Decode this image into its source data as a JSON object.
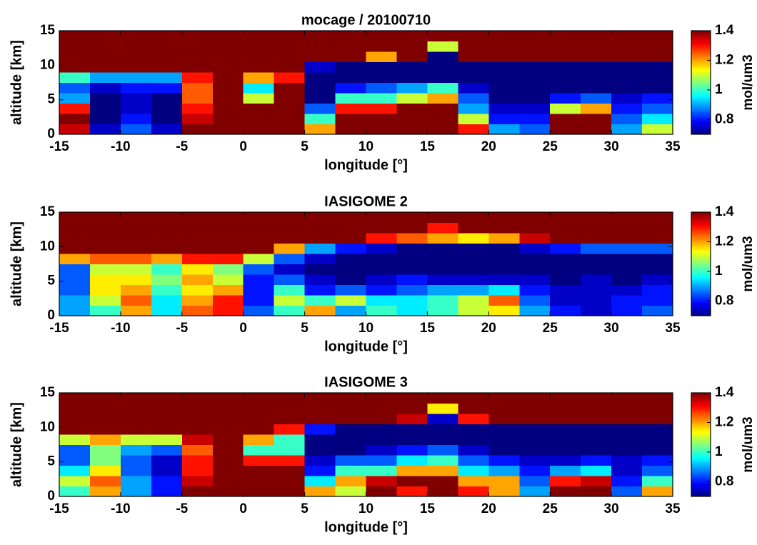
{
  "chart_data": [
    {
      "type": "heatmap",
      "title": "mocage / 20100710",
      "xlabel": "longitude [°]",
      "ylabel": "altitude [km]",
      "x": [
        -13.75,
        -11.25,
        -8.75,
        -6.25,
        -3.75,
        -1.25,
        1.25,
        3.75,
        6.25,
        8.75,
        11.25,
        13.75,
        16.25,
        18.75,
        21.25,
        23.75,
        26.25,
        28.75,
        31.25,
        33.75
      ],
      "y": [
        0.75,
        2.25,
        3.75,
        5.25,
        6.75,
        8.25,
        9.75,
        11.25,
        12.75,
        14.25
      ],
      "z": [
        [
          1.35,
          0.75,
          0.85,
          0.75,
          1.4,
          1.5,
          1.5,
          1.5,
          1.2,
          1.5,
          1.4,
          1.5,
          1.5,
          1.3,
          0.9,
          0.85,
          1.5,
          1.45,
          0.9,
          1.1
        ],
        [
          1.4,
          0.7,
          0.8,
          0.7,
          1.35,
          1.5,
          1.5,
          1.5,
          1.0,
          1.5,
          1.45,
          1.5,
          1.5,
          1.1,
          0.8,
          0.8,
          1.45,
          1.4,
          0.85,
          0.95
        ],
        [
          1.3,
          0.7,
          0.75,
          0.7,
          1.3,
          1.5,
          1.5,
          1.5,
          0.85,
          1.3,
          1.3,
          1.4,
          1.4,
          0.9,
          0.75,
          0.75,
          1.1,
          1.2,
          0.8,
          0.85
        ],
        [
          0.9,
          0.7,
          0.75,
          0.7,
          1.25,
          1.5,
          1.1,
          1.5,
          0.7,
          1.0,
          1.0,
          1.1,
          1.2,
          0.85,
          0.7,
          0.7,
          0.8,
          0.85,
          0.75,
          0.8
        ],
        [
          0.85,
          0.75,
          0.8,
          0.8,
          1.25,
          1.5,
          0.95,
          1.5,
          0.7,
          0.8,
          0.85,
          0.9,
          1.0,
          0.75,
          0.7,
          0.7,
          0.7,
          0.7,
          0.7,
          0.7
        ],
        [
          1.0,
          0.9,
          0.9,
          0.9,
          1.3,
          1.45,
          1.2,
          1.3,
          0.7,
          0.7,
          0.7,
          0.7,
          0.7,
          0.7,
          0.7,
          0.7,
          0.7,
          0.7,
          0.7,
          0.7
        ],
        [
          1.5,
          1.5,
          1.5,
          1.5,
          1.5,
          1.5,
          1.5,
          1.5,
          0.75,
          0.7,
          0.7,
          0.7,
          0.7,
          0.7,
          0.7,
          0.7,
          0.7,
          0.7,
          0.7,
          0.7
        ],
        [
          1.5,
          1.5,
          1.5,
          1.5,
          1.5,
          1.5,
          1.5,
          1.5,
          1.5,
          1.5,
          1.2,
          1.4,
          0.7,
          1.5,
          1.5,
          1.5,
          1.5,
          1.5,
          1.5,
          1.5
        ],
        [
          1.5,
          1.5,
          1.5,
          1.5,
          1.5,
          1.5,
          1.5,
          1.5,
          1.5,
          1.5,
          1.5,
          1.5,
          1.1,
          1.5,
          1.5,
          1.5,
          1.5,
          1.5,
          1.5,
          1.5
        ],
        [
          1.5,
          1.5,
          1.5,
          1.5,
          1.5,
          1.5,
          1.5,
          1.5,
          1.5,
          1.5,
          1.5,
          1.5,
          1.5,
          1.5,
          1.5,
          1.5,
          1.5,
          1.5,
          1.5,
          1.5
        ]
      ],
      "xlim": [
        -15,
        35
      ],
      "ylim": [
        0,
        15
      ],
      "xticks": [
        -15,
        -10,
        -5,
        0,
        5,
        10,
        15,
        20,
        25,
        30,
        35
      ],
      "yticks": [
        0,
        5,
        10,
        15
      ],
      "colorbar": {
        "label": "mol/um3",
        "clim": [
          0.7,
          1.4
        ],
        "ticks": [
          0.8,
          1,
          1.2,
          1.4
        ],
        "colormap": "jet"
      }
    },
    {
      "type": "heatmap",
      "title": "IASIGOME 2",
      "xlabel": "longitude [°]",
      "ylabel": "altitude [km]",
      "x": [
        -13.75,
        -11.25,
        -8.75,
        -6.25,
        -3.75,
        -1.25,
        1.25,
        3.75,
        6.25,
        8.75,
        11.25,
        13.75,
        16.25,
        18.75,
        21.25,
        23.75,
        26.25,
        28.75,
        31.25,
        33.75
      ],
      "y": [
        0.75,
        2.25,
        3.75,
        5.25,
        6.75,
        8.25,
        9.75,
        11.25,
        12.75,
        14.25
      ],
      "z": [
        [
          0.9,
          1.0,
          1.2,
          0.95,
          1.25,
          1.3,
          0.85,
          1.0,
          1.2,
          0.9,
          1.0,
          0.95,
          1.0,
          1.1,
          1.15,
          0.9,
          0.8,
          0.75,
          0.8,
          0.85
        ],
        [
          0.9,
          1.1,
          1.25,
          0.95,
          1.2,
          1.3,
          0.8,
          1.1,
          1.0,
          1.1,
          0.95,
          0.95,
          1.0,
          1.1,
          1.25,
          0.85,
          0.75,
          0.75,
          0.8,
          0.8
        ],
        [
          0.85,
          1.15,
          1.2,
          1.0,
          1.15,
          1.2,
          0.8,
          1.0,
          0.8,
          0.85,
          0.8,
          0.85,
          0.9,
          0.9,
          0.95,
          0.8,
          0.75,
          0.75,
          0.75,
          0.8
        ],
        [
          0.85,
          1.15,
          1.15,
          1.05,
          1.2,
          1.1,
          0.8,
          0.85,
          0.75,
          0.7,
          0.75,
          0.8,
          0.75,
          0.75,
          0.75,
          0.75,
          0.7,
          0.75,
          0.7,
          0.75
        ],
        [
          0.85,
          1.1,
          1.1,
          1.0,
          1.15,
          1.05,
          0.85,
          0.75,
          0.7,
          0.7,
          0.7,
          0.7,
          0.7,
          0.7,
          0.7,
          0.7,
          0.7,
          0.7,
          0.7,
          0.7
        ],
        [
          1.2,
          1.25,
          1.25,
          1.2,
          1.3,
          1.3,
          1.1,
          0.85,
          0.75,
          0.7,
          0.7,
          0.7,
          0.7,
          0.7,
          0.7,
          0.7,
          0.7,
          0.7,
          0.7,
          0.7
        ],
        [
          1.5,
          1.5,
          1.5,
          1.5,
          1.5,
          1.5,
          1.4,
          1.2,
          0.9,
          0.8,
          0.75,
          0.7,
          0.7,
          0.7,
          0.7,
          0.75,
          0.8,
          0.85,
          0.85,
          0.85
        ],
        [
          1.5,
          1.5,
          1.5,
          1.5,
          1.5,
          1.5,
          1.5,
          1.5,
          1.5,
          1.4,
          1.3,
          1.25,
          1.2,
          1.15,
          1.2,
          1.35,
          1.5,
          1.5,
          1.5,
          1.5
        ],
        [
          1.5,
          1.5,
          1.5,
          1.5,
          1.5,
          1.5,
          1.5,
          1.5,
          1.5,
          1.5,
          1.5,
          1.5,
          1.3,
          1.5,
          1.5,
          1.5,
          1.5,
          1.5,
          1.5,
          1.5
        ],
        [
          1.5,
          1.5,
          1.5,
          1.5,
          1.5,
          1.5,
          1.5,
          1.5,
          1.5,
          1.5,
          1.5,
          1.5,
          1.5,
          1.5,
          1.5,
          1.5,
          1.5,
          1.5,
          1.5,
          1.5
        ]
      ],
      "xlim": [
        -15,
        35
      ],
      "ylim": [
        0,
        15
      ],
      "xticks": [
        -15,
        -10,
        -5,
        0,
        5,
        10,
        15,
        20,
        25,
        30,
        35
      ],
      "yticks": [
        0,
        5,
        10,
        15
      ],
      "colorbar": {
        "label": "mol/um3",
        "clim": [
          0.7,
          1.4
        ],
        "ticks": [
          0.8,
          1,
          1.2,
          1.4
        ],
        "colormap": "jet"
      }
    },
    {
      "type": "heatmap",
      "title": "IASIGOME 3",
      "xlabel": "longitude [°]",
      "ylabel": "altitude [km]",
      "x": [
        -13.75,
        -11.25,
        -8.75,
        -6.25,
        -3.75,
        -1.25,
        1.25,
        3.75,
        6.25,
        8.75,
        11.25,
        13.75,
        16.25,
        18.75,
        21.25,
        23.75,
        26.25,
        28.75,
        31.25,
        33.75
      ],
      "y": [
        0.75,
        2.25,
        3.75,
        5.25,
        6.75,
        8.25,
        9.75,
        11.25,
        12.75,
        14.25
      ],
      "z": [
        [
          1.0,
          1.2,
          0.9,
          0.8,
          1.4,
          1.5,
          1.5,
          1.5,
          1.2,
          1.1,
          1.45,
          1.3,
          1.4,
          1.3,
          1.2,
          0.9,
          1.45,
          1.4,
          0.85,
          1.2
        ],
        [
          1.1,
          1.25,
          0.9,
          0.8,
          1.35,
          1.5,
          1.5,
          1.5,
          0.95,
          1.2,
          1.35,
          1.4,
          1.4,
          1.2,
          1.2,
          0.85,
          1.3,
          1.35,
          0.8,
          1.0
        ],
        [
          0.95,
          1.15,
          0.85,
          0.75,
          1.3,
          1.5,
          1.5,
          1.45,
          0.8,
          1.0,
          1.0,
          1.2,
          1.2,
          0.95,
          0.9,
          0.8,
          0.9,
          0.95,
          0.75,
          0.85
        ],
        [
          0.85,
          1.05,
          0.85,
          0.75,
          1.3,
          1.5,
          1.3,
          1.3,
          0.75,
          0.85,
          0.85,
          0.95,
          1.0,
          0.85,
          0.8,
          0.75,
          0.75,
          0.8,
          0.75,
          0.8
        ],
        [
          0.85,
          1.05,
          0.9,
          0.85,
          1.25,
          1.5,
          1.0,
          1.0,
          0.7,
          0.7,
          0.75,
          0.8,
          0.85,
          0.75,
          0.7,
          0.7,
          0.7,
          0.7,
          0.7,
          0.7
        ],
        [
          1.1,
          1.2,
          1.1,
          1.1,
          1.35,
          1.4,
          1.2,
          1.0,
          0.7,
          0.7,
          0.7,
          0.7,
          0.7,
          0.7,
          0.7,
          0.7,
          0.7,
          0.7,
          0.7,
          0.7
        ],
        [
          1.5,
          1.5,
          1.5,
          1.5,
          1.5,
          1.5,
          1.5,
          1.3,
          0.8,
          0.7,
          0.7,
          0.7,
          0.7,
          0.7,
          0.7,
          0.7,
          0.7,
          0.7,
          0.7,
          0.7
        ],
        [
          1.5,
          1.5,
          1.5,
          1.5,
          1.5,
          1.5,
          1.5,
          1.5,
          1.5,
          1.5,
          1.4,
          1.35,
          0.75,
          1.3,
          1.45,
          1.5,
          1.5,
          1.5,
          1.5,
          1.5
        ],
        [
          1.5,
          1.5,
          1.5,
          1.5,
          1.5,
          1.5,
          1.5,
          1.5,
          1.5,
          1.5,
          1.5,
          1.5,
          1.15,
          1.5,
          1.5,
          1.5,
          1.5,
          1.5,
          1.5,
          1.5
        ],
        [
          1.5,
          1.5,
          1.5,
          1.5,
          1.5,
          1.5,
          1.5,
          1.5,
          1.5,
          1.5,
          1.5,
          1.5,
          1.5,
          1.5,
          1.5,
          1.5,
          1.5,
          1.5,
          1.5,
          1.5
        ]
      ],
      "xlim": [
        -15,
        35
      ],
      "ylim": [
        0,
        15
      ],
      "xticks": [
        -15,
        -10,
        -5,
        0,
        5,
        10,
        15,
        20,
        25,
        30,
        35
      ],
      "yticks": [
        0,
        5,
        10,
        15
      ],
      "colorbar": {
        "label": "mol/um3",
        "clim": [
          0.7,
          1.4
        ],
        "ticks": [
          0.8,
          1,
          1.2,
          1.4
        ],
        "colormap": "jet"
      }
    }
  ]
}
